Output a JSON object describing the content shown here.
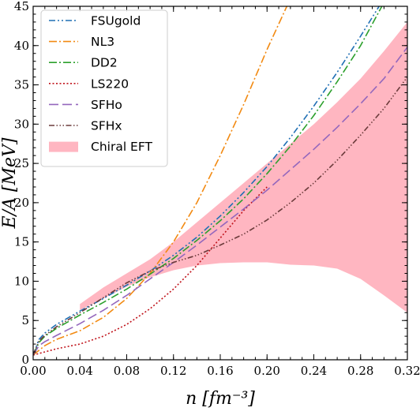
{
  "chart_data": {
    "type": "line",
    "xlabel": "n  [fm⁻³]",
    "ylabel": "E/A [MeV]",
    "xlim": [
      0.0,
      0.32
    ],
    "ylim": [
      0,
      45
    ],
    "xticks": [
      0.0,
      0.04,
      0.08,
      0.12,
      0.16,
      0.2,
      0.24,
      0.28,
      0.32
    ],
    "xtick_labels": [
      "0.00",
      "0.04",
      "0.08",
      "0.12",
      "0.16",
      "0.20",
      "0.24",
      "0.28",
      "0.32"
    ],
    "yticks": [
      0,
      5,
      10,
      15,
      20,
      25,
      30,
      35,
      40,
      45
    ],
    "ytick_labels": [
      "0",
      "5",
      "10",
      "15",
      "20",
      "25",
      "30",
      "35",
      "40",
      "45"
    ],
    "grid": false,
    "legend_position": "top-left",
    "band": {
      "name": "Chiral EFT",
      "color": "#ffb6c1",
      "x": [
        0.04,
        0.06,
        0.08,
        0.1,
        0.12,
        0.14,
        0.16,
        0.18,
        0.2,
        0.22,
        0.24,
        0.26,
        0.28,
        0.3,
        0.32
      ],
      "lower": [
        6.3,
        7.8,
        9.3,
        10.5,
        11.4,
        12.0,
        12.3,
        12.4,
        12.4,
        12.1,
        12.0,
        11.6,
        10.3,
        8.2,
        6.0
      ],
      "upper": [
        7.1,
        9.2,
        11.0,
        12.8,
        15.0,
        17.5,
        20.0,
        22.5,
        25.0,
        27.5,
        30.0,
        32.8,
        35.8,
        39.3,
        43.0
      ]
    },
    "series": [
      {
        "name": "FSUgold",
        "color": "#1f6fb4",
        "dash": "8 3 2 3 2 3",
        "x": [
          0,
          0.005,
          0.01,
          0.02,
          0.04,
          0.06,
          0.08,
          0.1,
          0.12,
          0.14,
          0.16,
          0.18,
          0.2,
          0.22,
          0.24,
          0.26,
          0.28,
          0.3
        ],
        "y": [
          0.6,
          2.6,
          3.4,
          4.5,
          6.2,
          7.8,
          9.5,
          11.3,
          13.3,
          15.6,
          18.3,
          21.3,
          24.6,
          28.3,
          32.3,
          36.6,
          41.2,
          46.0
        ]
      },
      {
        "name": "NL3",
        "color": "#f28a12",
        "dash": "10 3 2 3",
        "x": [
          0,
          0.01,
          0.02,
          0.04,
          0.06,
          0.08,
          0.1,
          0.12,
          0.14,
          0.16,
          0.18,
          0.2,
          0.22
        ],
        "y": [
          0.6,
          1.8,
          2.6,
          3.7,
          5.4,
          7.8,
          11.0,
          15.0,
          20.0,
          26.0,
          32.5,
          39.5,
          46.0
        ]
      },
      {
        "name": "DD2",
        "color": "#2ca02c",
        "dash": "10 3 2 3",
        "x": [
          0,
          0.005,
          0.01,
          0.02,
          0.04,
          0.06,
          0.08,
          0.1,
          0.12,
          0.14,
          0.16,
          0.18,
          0.2,
          0.22,
          0.24,
          0.26,
          0.28,
          0.3
        ],
        "y": [
          0.6,
          2.2,
          3.0,
          4.0,
          5.7,
          7.3,
          9.0,
          10.9,
          12.9,
          15.2,
          17.7,
          20.5,
          23.7,
          27.2,
          31.1,
          35.4,
          40.0,
          45.5
        ]
      },
      {
        "name": "LS220",
        "color": "#c0141c",
        "dash": "2 2.5",
        "x": [
          0,
          0.02,
          0.04,
          0.06,
          0.08,
          0.1,
          0.12,
          0.14,
          0.16,
          0.18,
          0.2
        ],
        "y": [
          0.6,
          1.4,
          2.0,
          3.0,
          4.5,
          6.5,
          9.0,
          12.0,
          15.5,
          19.0,
          22.0
        ]
      },
      {
        "name": "SFHo",
        "color": "#9467bd",
        "dash": "12 5",
        "x": [
          0,
          0.005,
          0.01,
          0.02,
          0.04,
          0.06,
          0.08,
          0.1,
          0.12,
          0.14,
          0.16,
          0.18,
          0.2,
          0.22,
          0.24,
          0.26,
          0.28,
          0.3,
          0.32
        ],
        "y": [
          0.6,
          1.8,
          2.3,
          3.1,
          4.6,
          6.3,
          8.2,
          10.3,
          12.4,
          14.6,
          16.9,
          19.2,
          21.6,
          24.2,
          26.8,
          29.6,
          32.6,
          35.8,
          39.8
        ]
      },
      {
        "name": "SFHx",
        "color": "#6b3b3b",
        "dash": "7 2.5 1.5 2.5 1.5 2.5 1.5 2.5",
        "x": [
          0,
          0.005,
          0.01,
          0.02,
          0.04,
          0.06,
          0.08,
          0.1,
          0.12,
          0.14,
          0.16,
          0.18,
          0.2,
          0.22,
          0.24,
          0.26,
          0.28,
          0.3,
          0.32
        ],
        "y": [
          0.6,
          2.4,
          3.1,
          4.2,
          6.0,
          7.9,
          9.8,
          11.3,
          12.4,
          13.3,
          14.6,
          16.0,
          17.8,
          20.0,
          22.5,
          25.4,
          28.6,
          32.0,
          36.0
        ]
      }
    ]
  }
}
